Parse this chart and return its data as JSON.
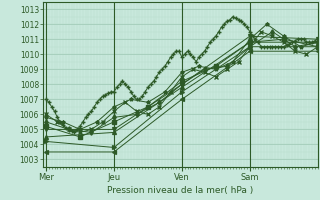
{
  "xlabel": "Pression niveau de la mer( hPa )",
  "bg_color": "#c8e8dc",
  "grid_major_color": "#9ec8b4",
  "grid_minor_color": "#b8dccb",
  "line_color": "#2d5a27",
  "yticks": [
    1003,
    1004,
    1005,
    1006,
    1007,
    1008,
    1009,
    1010,
    1011,
    1012,
    1013
  ],
  "ylim": [
    1002.5,
    1013.5
  ],
  "day_labels": [
    "Mer",
    "Jeu",
    "Ven",
    "Sam"
  ],
  "day_positions": [
    0,
    96,
    192,
    288
  ],
  "xlim": [
    -4,
    384
  ],
  "series": [
    [
      0,
      1007.0,
      4,
      1006.8,
      8,
      1006.5,
      12,
      1006.2,
      16,
      1005.8,
      20,
      1005.5,
      24,
      1005.3,
      28,
      1005.1,
      32,
      1005.0,
      36,
      1004.9,
      40,
      1004.8,
      44,
      1005.0,
      48,
      1005.2,
      52,
      1005.5,
      56,
      1005.8,
      60,
      1006.0,
      64,
      1006.2,
      68,
      1006.5,
      72,
      1006.8,
      76,
      1007.0,
      80,
      1007.2,
      84,
      1007.3,
      88,
      1007.4,
      92,
      1007.5,
      96,
      1007.5,
      100,
      1007.8,
      104,
      1008.0,
      108,
      1008.2,
      112,
      1008.0,
      116,
      1007.8,
      120,
      1007.5,
      124,
      1007.2,
      128,
      1007.0,
      132,
      1007.0,
      136,
      1007.2,
      140,
      1007.5,
      144,
      1007.8,
      148,
      1008.0,
      152,
      1008.2,
      156,
      1008.5,
      160,
      1008.8,
      164,
      1009.0,
      168,
      1009.2,
      172,
      1009.5,
      176,
      1009.8,
      180,
      1010.0,
      184,
      1010.2,
      188,
      1010.2,
      192,
      1009.8,
      196,
      1010.0,
      200,
      1010.2,
      204,
      1010.0,
      208,
      1009.8,
      212,
      1009.5,
      216,
      1009.8,
      220,
      1010.0,
      224,
      1010.2,
      228,
      1010.5,
      232,
      1010.8,
      236,
      1011.0,
      240,
      1011.2,
      244,
      1011.5,
      248,
      1011.8,
      252,
      1012.0,
      256,
      1012.2,
      260,
      1012.3,
      264,
      1012.5,
      268,
      1012.4,
      272,
      1012.3,
      276,
      1012.2,
      280,
      1012.0,
      284,
      1011.8,
      288,
      1011.5,
      292,
      1011.2,
      296,
      1011.0,
      300,
      1010.8,
      304,
      1010.5,
      308,
      1010.5,
      312,
      1010.5,
      316,
      1010.5,
      320,
      1010.5,
      324,
      1010.5,
      328,
      1010.5,
      332,
      1010.5,
      336,
      1010.5,
      340,
      1010.6,
      344,
      1010.7,
      348,
      1010.8,
      352,
      1010.9,
      356,
      1011.0,
      360,
      1011.0,
      364,
      1011.0,
      368,
      1010.8,
      372,
      1010.8,
      376,
      1010.8,
      380,
      1010.9,
      384,
      1011.0
    ],
    [
      0,
      1006.0,
      16,
      1005.5,
      32,
      1005.0,
      48,
      1004.8,
      64,
      1005.0,
      80,
      1005.5,
      96,
      1006.2,
      112,
      1006.8,
      128,
      1006.2,
      144,
      1006.0,
      160,
      1006.5,
      176,
      1007.5,
      192,
      1008.5,
      208,
      1009.0,
      224,
      1008.8,
      240,
      1008.5,
      256,
      1009.0,
      272,
      1009.5,
      288,
      1010.5,
      304,
      1011.5,
      320,
      1011.2,
      336,
      1010.8,
      352,
      1010.2,
      368,
      1010.0,
      384,
      1010.5
    ],
    [
      0,
      1005.8,
      24,
      1005.5,
      48,
      1005.0,
      72,
      1005.5,
      96,
      1006.5,
      120,
      1007.0,
      144,
      1006.8,
      168,
      1007.5,
      192,
      1008.8,
      216,
      1009.2,
      240,
      1009.0,
      264,
      1009.5,
      288,
      1011.0,
      312,
      1012.0,
      336,
      1011.2,
      360,
      1010.5,
      384,
      1010.8
    ],
    [
      0,
      1005.5,
      32,
      1005.0,
      64,
      1004.8,
      96,
      1005.8,
      128,
      1006.0,
      160,
      1006.8,
      192,
      1008.0,
      224,
      1009.0,
      256,
      1009.2,
      288,
      1010.5,
      320,
      1011.5,
      352,
      1010.5,
      384,
      1010.8
    ],
    [
      0,
      1005.2,
      48,
      1004.5,
      96,
      1005.5,
      144,
      1006.5,
      192,
      1008.2,
      240,
      1009.2,
      288,
      1010.8,
      336,
      1011.0,
      384,
      1010.5
    ],
    [
      0,
      1005.0,
      96,
      1005.0,
      192,
      1008.0,
      288,
      1011.2,
      384,
      1011.0
    ],
    [
      0,
      1004.5,
      96,
      1004.8,
      192,
      1007.8,
      288,
      1010.8,
      384,
      1010.8
    ],
    [
      0,
      1004.2,
      96,
      1003.8,
      192,
      1007.5,
      288,
      1010.5,
      384,
      1010.5
    ],
    [
      0,
      1003.5,
      96,
      1003.5,
      192,
      1007.0,
      288,
      1010.2,
      384,
      1010.2
    ]
  ]
}
